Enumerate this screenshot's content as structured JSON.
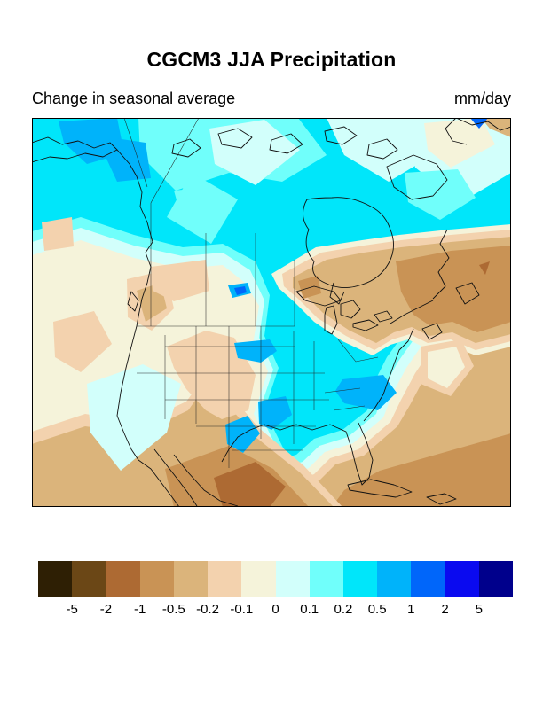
{
  "header": {
    "title": "CGCM3 JJA Precipitation",
    "subtitle_left": "Change in seasonal average",
    "units": "mm/day"
  },
  "colorbar": {
    "labels": [
      "-5",
      "-2",
      "-1",
      "-0.5",
      "-0.2",
      "-0.1",
      "0",
      "0.1",
      "0.2",
      "0.5",
      "1",
      "2",
      "5"
    ],
    "colors": [
      "#2e1f04",
      "#6b4716",
      "#ad6a33",
      "#c99355",
      "#dbb47b",
      "#f3d2ae",
      "#f5f3da",
      "#d2fffb",
      "#70fffb",
      "#00e6fa",
      "#00b3fa",
      "#0066fa",
      "#0a0af0",
      "#00008c"
    ]
  },
  "chart_data": {
    "type": "heatmap",
    "title": "CGCM3 JJA Precipitation",
    "subtitle": "Change in seasonal average",
    "units": "mm/day",
    "geography": "North America (Alaska and Canada south through Mexico and the Caribbean)",
    "contour_levels": [
      -5,
      -2,
      -1,
      -0.5,
      -0.2,
      -0.1,
      0,
      0.1,
      0.2,
      0.5,
      1,
      2,
      5
    ],
    "palette": [
      "#2e1f04",
      "#6b4716",
      "#ad6a33",
      "#c99355",
      "#dbb47b",
      "#f3d2ae",
      "#f5f3da",
      "#d2fffb",
      "#70fffb",
      "#00e6fa",
      "#00b3fa",
      "#0066fa",
      "#0a0af0",
      "#00008c"
    ],
    "legend_position": "bottom",
    "grid": false,
    "regions": [
      {
        "area": "Alaska / Yukon",
        "value_mm_day": "0.5 to 1 (two sky-blue patches ~0.5-1)"
      },
      {
        "area": "Central and northern Canada, Hudson Bay",
        "value_mm_day": "0.2 to 0.5"
      },
      {
        "area": "Arctic archipelago",
        "value_mm_day": "0 to 0.2 (pale cyan patchwork)"
      },
      {
        "area": "Great Lakes / Quebec / Labrador / Maritimes",
        "value_mm_day": "-0.5 to -1 (brown band)"
      },
      {
        "area": "US Great Plains and Midwest to mid-Atlantic",
        "value_mm_day": "0.2 to 0.5, local 0.5-1 over South Dakota, Kansas-Oklahoma, Texas, Appalachians"
      },
      {
        "area": "Western US interior and eastern Pacific",
        "value_mm_day": "0 to -0.2 (cream/peach)"
      },
      {
        "area": "Gulf coast and Southeast fringe",
        "value_mm_day": "0 to -0.2"
      },
      {
        "area": "Western Atlantic, Gulf of Mexico, Mexico, Caribbean",
        "value_mm_day": "-0.5 to -2 (tan to sienna, darkest near Baja and Cuba)"
      }
    ]
  }
}
